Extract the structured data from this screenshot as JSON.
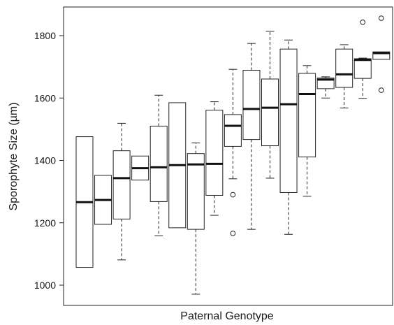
{
  "chart_data": {
    "type": "box",
    "title": "",
    "xlabel": "Paternal Genotype",
    "ylabel": "Sporophyte Size (µm)",
    "ylim": [
      940,
      1890
    ],
    "yticks": [
      1000,
      1200,
      1400,
      1600,
      1800
    ],
    "grid": false,
    "legend": "none",
    "boxes": [
      {
        "min": 1057,
        "q1": 1057,
        "median": 1266,
        "q3": 1476,
        "max": 1476,
        "outliers": []
      },
      {
        "min": 1195,
        "q1": 1195,
        "median": 1273,
        "q3": 1352,
        "max": 1352,
        "outliers": []
      },
      {
        "min": 1081,
        "q1": 1212,
        "median": 1343,
        "q3": 1431,
        "max": 1519,
        "outliers": []
      },
      {
        "min": 1337,
        "q1": 1337,
        "median": 1375,
        "q3": 1414,
        "max": 1414,
        "outliers": []
      },
      {
        "min": 1158,
        "q1": 1268,
        "median": 1378,
        "q3": 1510,
        "max": 1609,
        "outliers": []
      },
      {
        "min": 1184,
        "q1": 1184,
        "median": 1385,
        "q3": 1585,
        "max": 1585,
        "outliers": []
      },
      {
        "min": 971,
        "q1": 1179,
        "median": 1387,
        "q3": 1422,
        "max": 1456,
        "outliers": []
      },
      {
        "min": 1224,
        "q1": 1288,
        "median": 1389,
        "q3": 1561,
        "max": 1588,
        "outliers": []
      },
      {
        "min": 1341,
        "q1": 1445,
        "median": 1511,
        "q3": 1547,
        "max": 1692,
        "outliers": [
          1290,
          1166
        ]
      },
      {
        "min": 1179,
        "q1": 1467,
        "median": 1565,
        "q3": 1689,
        "max": 1775,
        "outliers": []
      },
      {
        "min": 1343,
        "q1": 1447,
        "median": 1569,
        "q3": 1661,
        "max": 1814,
        "outliers": []
      },
      {
        "min": 1163,
        "q1": 1297,
        "median": 1580,
        "q3": 1757,
        "max": 1786,
        "outliers": []
      },
      {
        "min": 1285,
        "q1": 1411,
        "median": 1613,
        "q3": 1679,
        "max": 1704,
        "outliers": []
      },
      {
        "min": 1600,
        "q1": 1630,
        "median": 1659,
        "q3": 1664,
        "max": 1668,
        "outliers": []
      },
      {
        "min": 1568,
        "q1": 1634,
        "median": 1676,
        "q3": 1757,
        "max": 1771,
        "outliers": []
      },
      {
        "min": 1599,
        "q1": 1663,
        "median": 1722,
        "q3": 1726,
        "max": 1728,
        "outliers": [
          1843
        ]
      },
      {
        "min": 1724,
        "q1": 1724,
        "median": 1744,
        "q3": 1748,
        "max": 1748,
        "outliers": [
          1856,
          1625
        ]
      }
    ]
  }
}
